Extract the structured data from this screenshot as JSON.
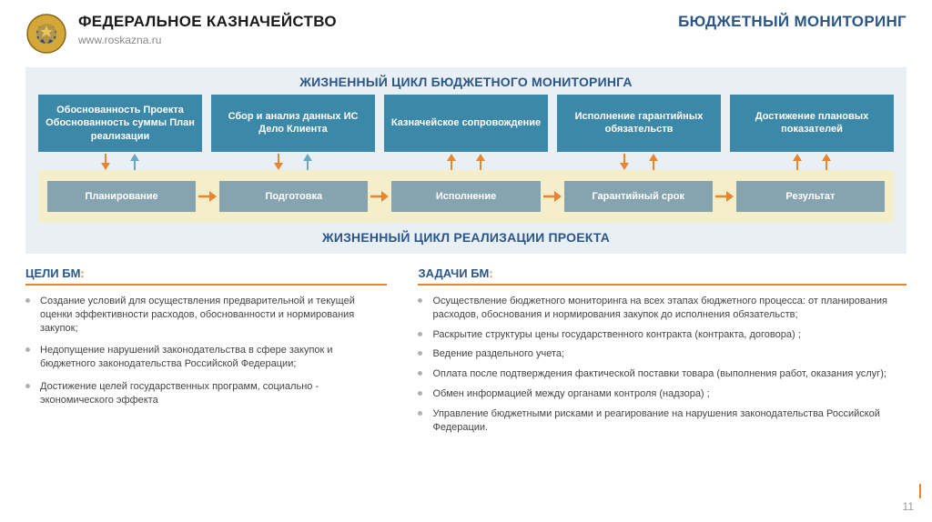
{
  "header": {
    "org": "ФЕДЕРАЛЬНОЕ КАЗНАЧЕЙСТВО",
    "url": "www.roskazna.ru",
    "topic": "БЮДЖЕТНЫЙ МОНИТОРИНГ"
  },
  "diagram": {
    "top_title": "ЖИЗНЕННЫЙ ЦИКЛ БЮДЖЕТНОГО МОНИТОРИНГА",
    "bottom_title": "ЖИЗНЕННЫЙ ЦИКЛ РЕАЛИЗАЦИИ ПРОЕКТА",
    "top_boxes": [
      "Обоснованность Проекта Обоснованность суммы План реализации",
      "Сбор и анализ данных ИС Дело Клиента",
      "Казначейское сопровождение",
      "Исполнение гарантийных обязательств",
      "Достижение плановых показателей"
    ],
    "phases": [
      "Планирование",
      "Подготовка",
      "Исполнение",
      "Гарантийный срок",
      "Результат"
    ],
    "arrow_pairs": [
      {
        "down": "#e8852f",
        "up": "#6aa7c4"
      },
      {
        "down": "#e8852f",
        "up": "#6aa7c4"
      },
      {
        "up1": "#e8852f",
        "up2": "#e8852f"
      },
      {
        "down": "#e8852f",
        "up": "#e8852f"
      },
      {
        "up1": "#e8852f",
        "up2": "#e8852f"
      }
    ],
    "colors": {
      "bg": "#e8eff5",
      "top_box": "#3c88a8",
      "phase_band": "#f5eecb",
      "phase_box": "#86a3b0",
      "title_color": "#2a5788",
      "arrow_orange": "#e8852f",
      "arrow_blue": "#6aa7c4"
    }
  },
  "goals": {
    "title": "ЦЕЛИ БМ",
    "items": [
      "Создание условий для осуществления предварительной и текущей оценки эффективности расходов, обоснованности и нормирования закупок;",
      "Недопущение нарушений законодательства в сфере закупок и бюджетного законодательства Российской Федерации;",
      "Достижение целей государственных программ, социально - экономического эффекта"
    ]
  },
  "tasks": {
    "title": "ЗАДАЧИ БМ",
    "items": [
      "Осуществление бюджетного мониторинга на всех этапах бюджетного процесса: от планирования расходов, обоснования и нормирования закупок до исполнения обязательств;",
      "Раскрытие структуры цены государственного контракта (контракта, договора) ;",
      "Ведение раздельного учета;",
      "Оплата после подтверждения фактической поставки товара (выполнения работ, оказания услуг);",
      "Обмен информацией между органами контроля (надзора) ;",
      "Управление бюджетными рисками и реагирование на нарушения законодательства Российской Федерации."
    ]
  },
  "page_number": "11"
}
